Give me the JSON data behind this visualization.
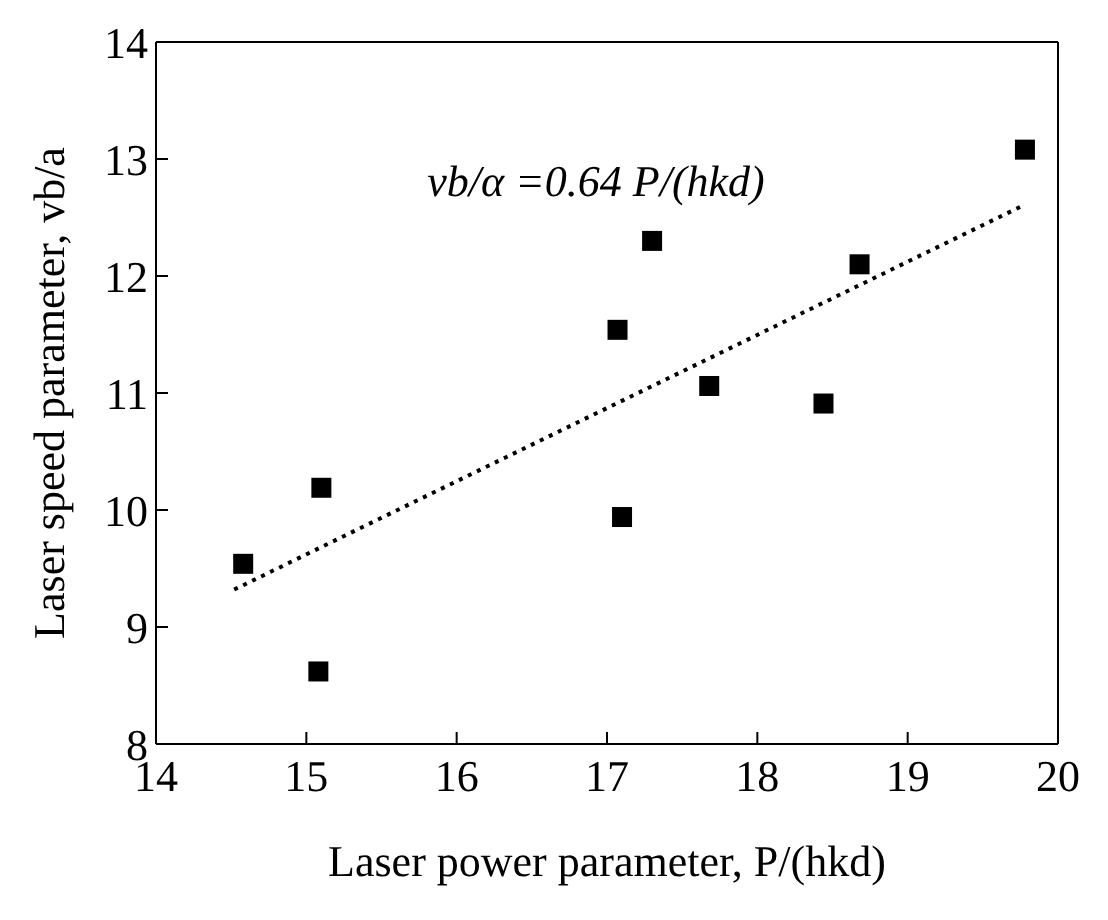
{
  "chart_data": {
    "type": "scatter",
    "xlabel": "Laser power parameter, P/(hkd)",
    "ylabel": "Laser speed parameter, vb/a",
    "annotations": [
      "vb/α =0.64 P/(hkd)"
    ],
    "xlim": [
      14,
      20
    ],
    "xticks": [
      14,
      15,
      16,
      17,
      18,
      19,
      20
    ],
    "ylim": [
      8,
      14
    ],
    "yticks": [
      8,
      9,
      10,
      11,
      12,
      13,
      14
    ],
    "legend": false,
    "series": [
      {
        "type": "scatter",
        "marker": "square",
        "color": "#000000",
        "x": [
          14.58,
          15.1,
          15.08,
          17.07,
          17.1,
          17.3,
          17.68,
          18.44,
          18.68,
          19.78
        ],
        "values": [
          9.54,
          10.19,
          8.62,
          11.54,
          9.94,
          12.3,
          11.06,
          10.91,
          12.1,
          13.08
        ]
      },
      {
        "type": "line",
        "line_style": "dotted",
        "marker": "none",
        "color": "#000000",
        "x": [
          14.52,
          19.78
        ],
        "values": [
          9.32,
          12.61
        ]
      }
    ]
  }
}
